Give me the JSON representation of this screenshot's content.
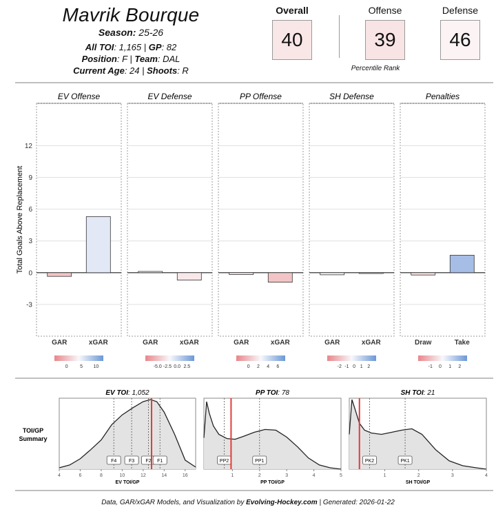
{
  "player": {
    "name": "Mavrik Bourque",
    "season_label": "Season",
    "season": "25-26",
    "toi_label": "All TOI",
    "toi": "1,165",
    "gp_label": "GP",
    "gp": "82",
    "position_label": "Position",
    "position": "F",
    "team_label": "Team",
    "team": "DAL",
    "age_label": "Current Age",
    "age": "24",
    "shoots_label": "Shoots",
    "shoots": "R"
  },
  "scores": {
    "overall_label": "Overall",
    "overall": "40",
    "offense_label": "Offense",
    "offense": "39",
    "defense_label": "Defense",
    "defense": "46",
    "percentile_label": "Percentile Rank"
  },
  "colors": {
    "neg": "#e8868a",
    "pos": "#6b98d6",
    "gar_line": "#e23a3a",
    "density_fill": "#e3e3e3"
  },
  "chart_data": [
    {
      "type": "bar",
      "ylabel": "Total Goals Above Replacement",
      "ylim": [
        -6,
        16
      ],
      "yticks": [
        -3,
        0,
        3,
        6,
        9,
        12
      ],
      "grid": true,
      "panels": [
        {
          "title": "EV Offense",
          "categories": [
            "GAR",
            "xGAR"
          ],
          "values": [
            -0.35,
            5.3
          ],
          "colors": [
            "#f2c4c6",
            "#e3e8f7"
          ],
          "legend_ticks": [
            "0",
            "5",
            "10"
          ]
        },
        {
          "title": "EV Defense",
          "categories": [
            "GAR",
            "xGAR"
          ],
          "values": [
            0.12,
            -0.7
          ],
          "colors": [
            "#f4f4f6",
            "#f8e8ea"
          ],
          "legend_ticks": [
            "-5.0",
            "-2.5",
            "0.0",
            "2.5"
          ]
        },
        {
          "title": "PP Offense",
          "categories": [
            "GAR",
            "xGAR"
          ],
          "values": [
            -0.18,
            -0.9
          ],
          "colors": [
            "#f6e8ea",
            "#f2c4c6"
          ],
          "legend_ticks": [
            "0",
            "2",
            "4",
            "6"
          ]
        },
        {
          "title": "SH Defense",
          "categories": [
            "GAR",
            "xGAR"
          ],
          "values": [
            -0.2,
            -0.08
          ],
          "colors": [
            "#f6f2f4",
            "#f3f3f5"
          ],
          "legend_ticks": [
            "-2",
            "-1",
            "0",
            "1",
            "2"
          ]
        },
        {
          "title": "Penalties",
          "categories": [
            "Draw",
            "Take"
          ],
          "values": [
            -0.22,
            1.65
          ],
          "colors": [
            "#f4dede",
            "#a6bde6"
          ],
          "legend_ticks": [
            "-1",
            "0",
            "1",
            "2"
          ]
        }
      ]
    },
    {
      "type": "area",
      "ylabel": "TOI/GP Summary",
      "panels": [
        {
          "title": "EV TOI",
          "total": "1,052",
          "xlabel": "EV TOI/GP",
          "xlim": [
            4,
            17
          ],
          "xticks": [
            4,
            6,
            8,
            10,
            12,
            14,
            16
          ],
          "marker": 12.8,
          "quantiles": [
            {
              "label": "F4",
              "x": 9.2
            },
            {
              "label": "F3",
              "x": 10.9
            },
            {
              "label": "F2",
              "x": 12.5
            },
            {
              "label": "F1",
              "x": 13.6
            }
          ],
          "density_x": [
            4,
            5,
            6,
            7,
            8,
            9,
            10,
            11,
            12,
            12.7,
            13.3,
            14,
            15,
            16,
            17
          ],
          "density_y": [
            0.02,
            0.06,
            0.15,
            0.28,
            0.42,
            0.64,
            0.78,
            0.88,
            0.97,
            1.0,
            0.97,
            0.82,
            0.5,
            0.13,
            0.03
          ]
        },
        {
          "title": "PP TOI",
          "total": "78",
          "xlabel": "PP TOI/GP",
          "xlim": [
            -0.05,
            5
          ],
          "xticks": [
            1,
            2,
            3,
            4,
            5
          ],
          "marker": 0.95,
          "quantiles": [
            {
              "label": "PP2",
              "x": 0.7
            },
            {
              "label": "PP1",
              "x": 2.0
            }
          ],
          "density_x": [
            -0.05,
            0.05,
            0.15,
            0.3,
            0.5,
            0.8,
            1.1,
            1.4,
            1.8,
            2.2,
            2.6,
            3.0,
            3.4,
            3.8,
            4.2,
            4.6,
            5.0
          ],
          "density_y": [
            0.45,
            0.97,
            0.8,
            0.62,
            0.5,
            0.44,
            0.43,
            0.47,
            0.53,
            0.57,
            0.56,
            0.46,
            0.32,
            0.16,
            0.06,
            0.02,
            0.0
          ]
        },
        {
          "title": "SH TOI",
          "total": "21",
          "xlabel": "SH TOI/GP",
          "xlim": [
            -0.05,
            4
          ],
          "xticks": [
            1,
            2,
            3,
            4
          ],
          "marker": 0.25,
          "quantiles": [
            {
              "label": "PK2",
              "x": 0.55
            },
            {
              "label": "PK1",
              "x": 1.6
            }
          ],
          "density_x": [
            -0.05,
            0.03,
            0.12,
            0.25,
            0.4,
            0.6,
            0.9,
            1.2,
            1.5,
            1.8,
            2.1,
            2.5,
            2.9,
            3.3,
            3.7,
            4.0
          ],
          "density_y": [
            0.5,
            1.0,
            0.86,
            0.66,
            0.56,
            0.52,
            0.5,
            0.53,
            0.56,
            0.58,
            0.5,
            0.28,
            0.12,
            0.05,
            0.02,
            0.0
          ]
        }
      ]
    }
  ],
  "footer": {
    "prefix": "Data, GAR/xGAR Models, and Visualization by ",
    "brand": "Evolving-Hockey.com",
    "suffix": " | Generated: 2026-01-22"
  }
}
